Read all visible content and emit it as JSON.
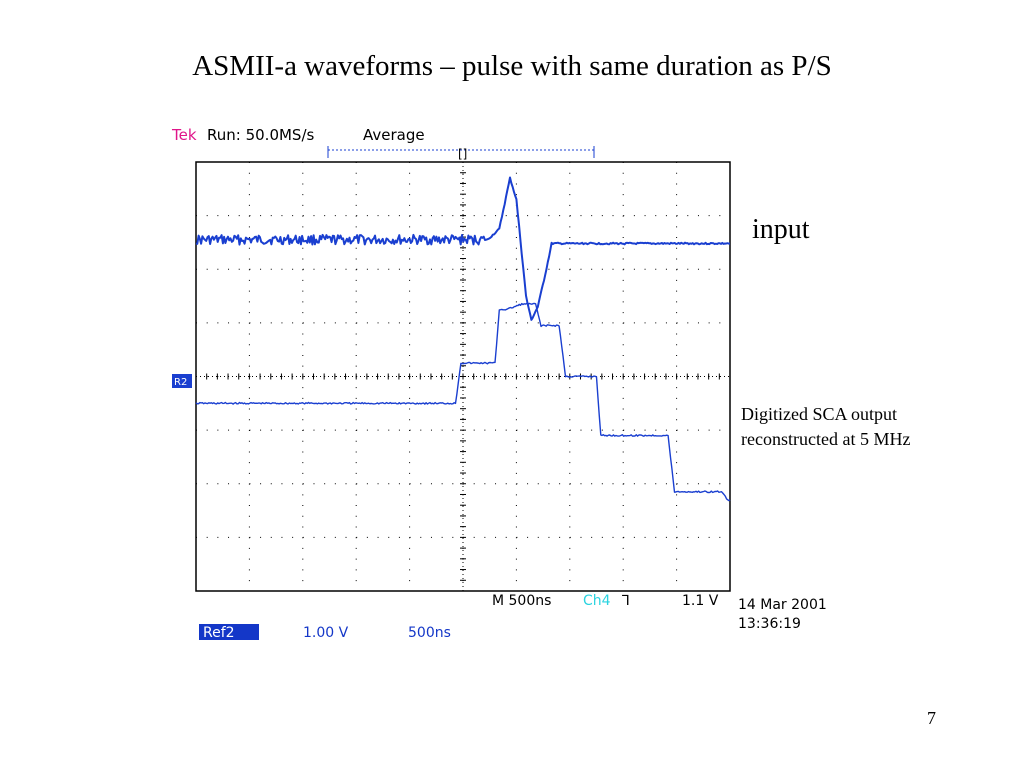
{
  "slide": {
    "title": "ASMII-a waveforms – pulse with same duration as P/S",
    "page_number": "7"
  },
  "annotations": {
    "input_label": "input",
    "output_label_line1": "Digitized SCA output",
    "output_label_line2": "reconstructed at 5 MHz"
  },
  "scope_header": {
    "brand": "Tek",
    "run": "Run: 50.0MS/s",
    "mode": "Average",
    "trigger_marker": "[]"
  },
  "scope_footer": {
    "timebase": "M 500ns",
    "channel": "Ch4",
    "trigger_slope": "⅂",
    "trigger_level": "1.1 V",
    "date": "14 Mar 2001",
    "time": "13:36:19",
    "ref_name": "Ref2",
    "ref_volts": "1.00 V",
    "ref_time": "500ns",
    "ref_marker": "R2"
  },
  "colors": {
    "trace": "#1a3fd0",
    "brand": "#e0158a",
    "channel": "#2bd3e0",
    "text_blue": "#1437c8",
    "grid": "#000000"
  },
  "chart_data": {
    "type": "line",
    "x_unit": "ns",
    "y_unit": "V",
    "x_range": [
      0,
      5000
    ],
    "y_range": [
      -4,
      4
    ],
    "grid": true,
    "divisions": {
      "x": 10,
      "y": 8
    },
    "series": [
      {
        "points": [
          [
            0,
            2.55
          ],
          [
            2730,
            2.55
          ],
          [
            2840,
            2.75
          ],
          [
            2940,
            3.7
          ],
          [
            3000,
            3.3
          ],
          [
            3050,
            2.3
          ],
          [
            3090,
            1.5
          ],
          [
            3140,
            1.05
          ],
          [
            3200,
            1.3
          ],
          [
            3270,
            1.9
          ],
          [
            3330,
            2.48
          ],
          [
            3400,
            2.48
          ],
          [
            5000,
            2.48
          ]
        ]
      },
      {
        "points": [
          [
            0,
            -0.5
          ],
          [
            2430,
            -0.5
          ],
          [
            2480,
            0.25
          ],
          [
            2800,
            0.25
          ],
          [
            2840,
            1.25
          ],
          [
            2910,
            1.25
          ],
          [
            3050,
            1.35
          ],
          [
            3180,
            1.35
          ],
          [
            3230,
            0.95
          ],
          [
            3400,
            0.95
          ],
          [
            3460,
            0
          ],
          [
            3750,
            0
          ],
          [
            3790,
            -1.1
          ],
          [
            4420,
            -1.1
          ],
          [
            4480,
            -2.15
          ],
          [
            4920,
            -2.15
          ],
          [
            4980,
            -2.3
          ],
          [
            5000,
            -2.3
          ]
        ]
      }
    ]
  }
}
